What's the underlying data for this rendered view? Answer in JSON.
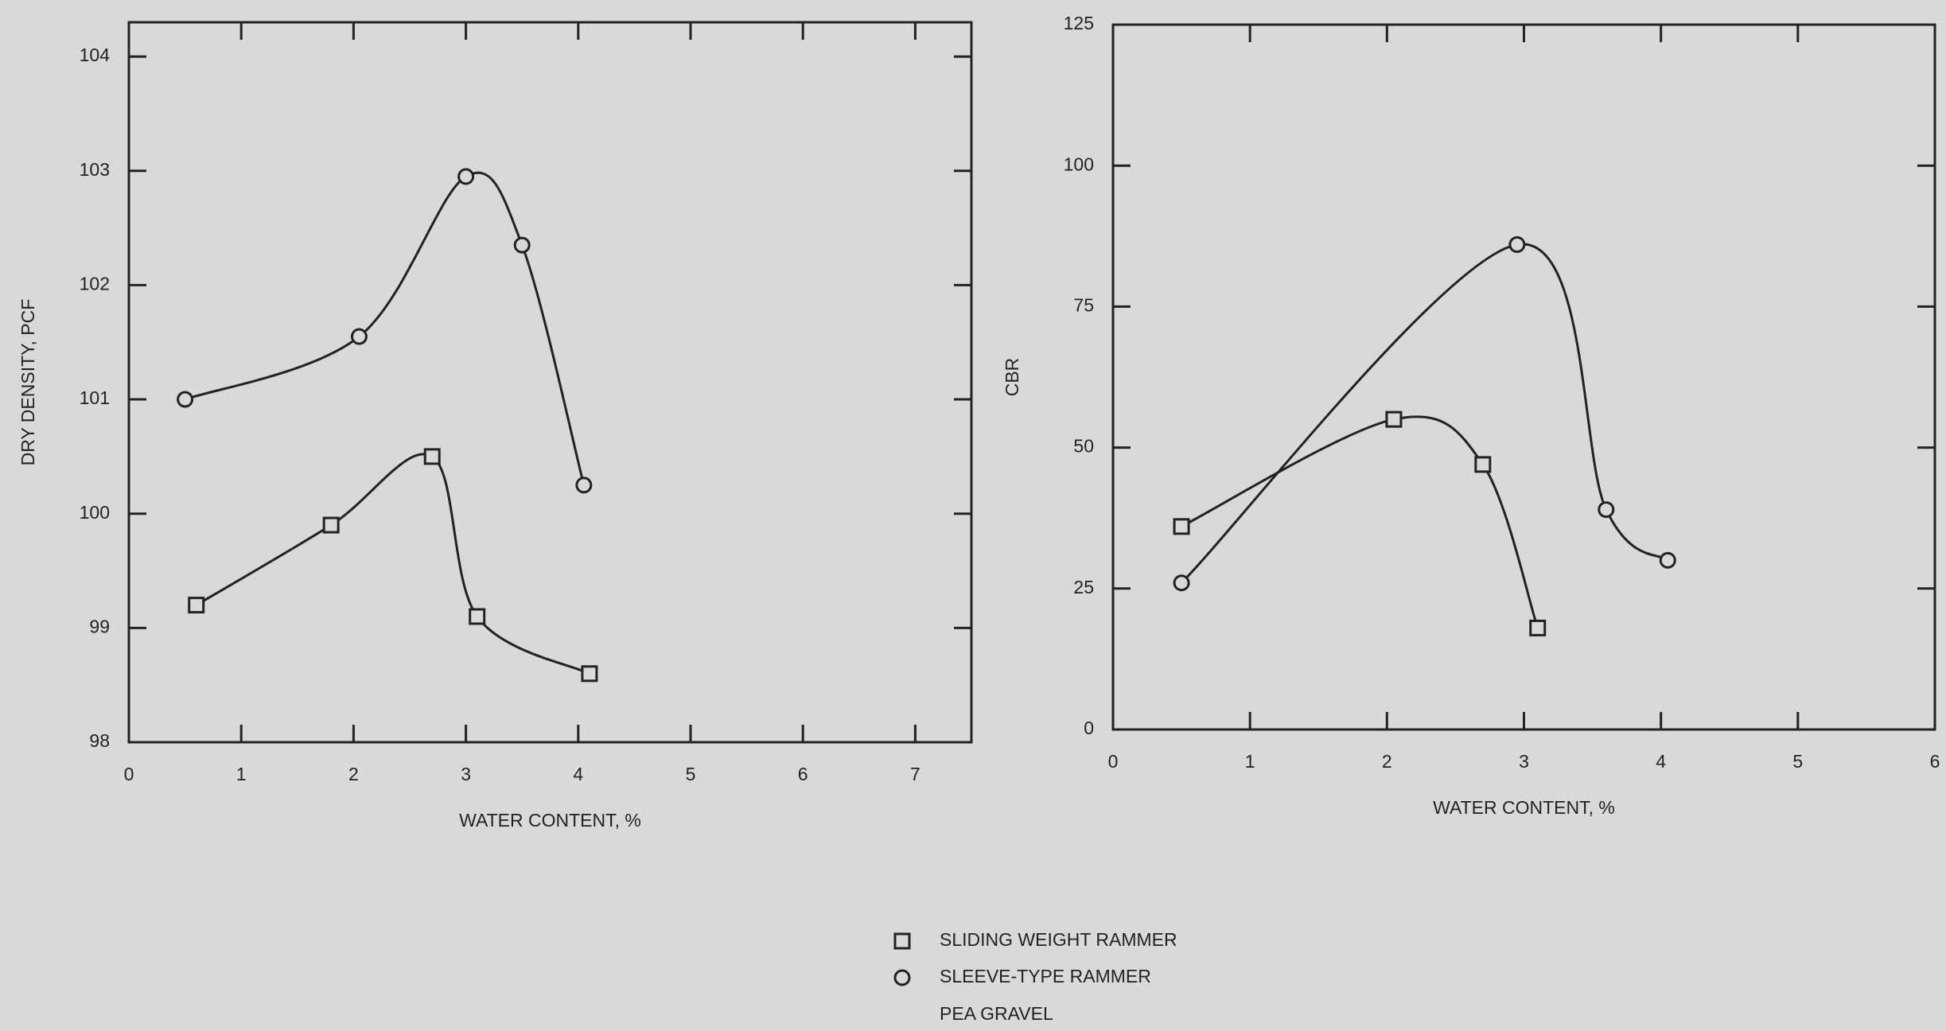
{
  "chart_data": [
    {
      "type": "line",
      "xlabel": "WATER CONTENT, %",
      "ylabel": "DRY DENSITY, PCF",
      "xlim": [
        0,
        7.5
      ],
      "ylim": [
        98,
        104.3
      ],
      "xticks": [
        0,
        1,
        2,
        3,
        4,
        5,
        6,
        7
      ],
      "yticks": [
        98,
        99,
        100,
        101,
        102,
        103,
        104
      ],
      "series": [
        {
          "name": "SLIDING WEIGHT RAMMER",
          "marker": "square",
          "x": [
            0.6,
            1.8,
            2.7,
            3.1,
            4.1
          ],
          "values": [
            99.2,
            99.9,
            100.5,
            99.1,
            98.6
          ]
        },
        {
          "name": "SLEEVE-TYPE RAMMER",
          "marker": "circle",
          "x": [
            0.5,
            2.05,
            3.0,
            3.5,
            4.05
          ],
          "values": [
            101,
            101.55,
            102.95,
            102.35,
            100.25
          ]
        }
      ],
      "legend_note": "PEA GRAVEL"
    },
    {
      "type": "line",
      "xlabel": "WATER CONTENT, %",
      "ylabel": "CBR",
      "xlim": [
        0,
        6
      ],
      "ylim": [
        0,
        125
      ],
      "xticks": [
        0,
        1,
        2,
        3,
        4,
        5,
        6
      ],
      "yticks": [
        0,
        25,
        50,
        75,
        100,
        125
      ],
      "series": [
        {
          "marker": "square",
          "x": [
            0.5,
            2.05,
            2.7,
            3.1
          ],
          "values": [
            36,
            55,
            47,
            18
          ]
        },
        {
          "marker": "circle",
          "x": [
            0.5,
            2.95,
            3.6,
            4.05
          ],
          "values": [
            26,
            86,
            39,
            30
          ]
        }
      ]
    }
  ]
}
